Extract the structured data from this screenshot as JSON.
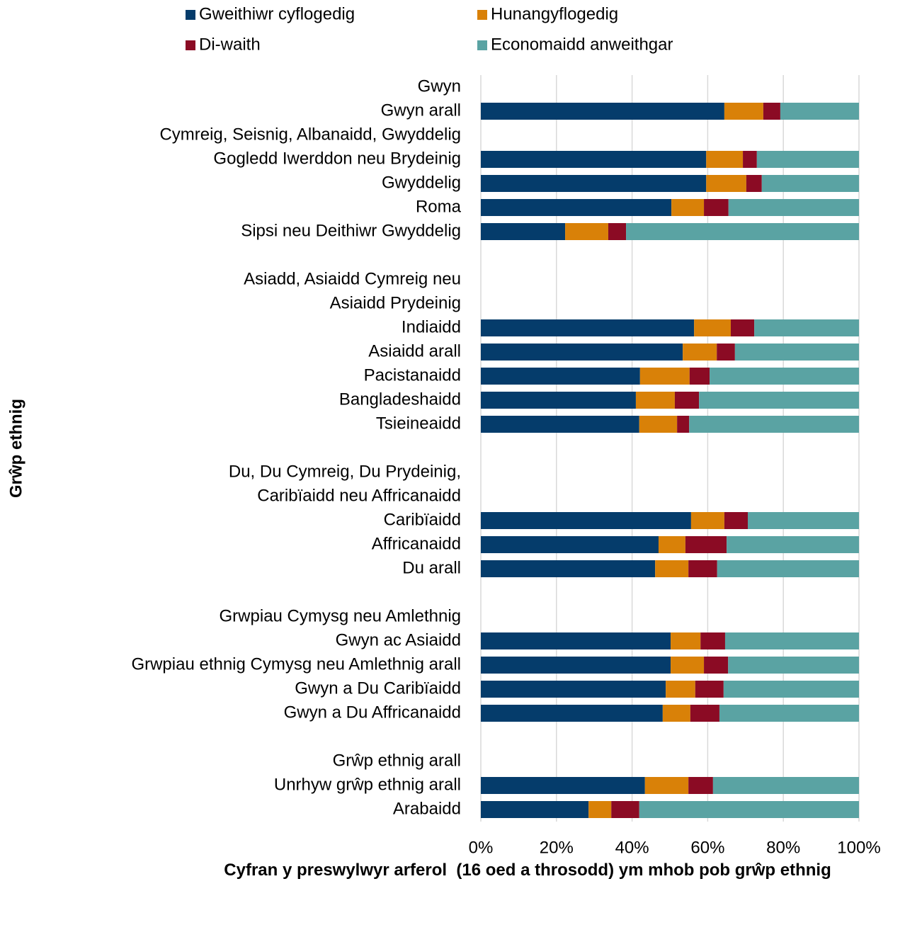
{
  "chart_data": {
    "type": "stacked_barh",
    "x_label": "Cyfran y preswylwyr arferol  (16 oed a throsodd) ym mhob pob grŵp ethnig",
    "y_label": "Grŵp ethnig",
    "categories": [
      "Gwyn",
      "Gwyn arall",
      "Cymreig, Seisnig, Albanaidd, Gwyddelig",
      "Gogledd Iwerddon neu Brydeinig",
      "Gwyddelig",
      "Roma",
      "Sipsi neu Deithiwr Gwyddelig",
      null,
      "Asiadd, Asiaidd Cymreig neu",
      "Asiaidd Prydeinig",
      "Indiaidd",
      "Asiaidd arall",
      "Pacistanaidd",
      "Bangladeshaidd",
      "Tsieineaidd",
      null,
      "Du, Du Cymreig, Du Prydeinig,",
      "Caribïaidd neu Affricanaidd",
      "Caribïaidd",
      "Affricanaidd",
      "Du arall",
      null,
      "Grwpiau Cymysg neu Amlethnig",
      "Gwyn ac Asiaidd",
      "Grwpiau ethnig Cymysg neu Amlethnig arall",
      "Gwyn a Du Caribïaidd",
      "Gwyn a Du Affricanaidd",
      null,
      "Grŵp ethnig arall",
      "Unrhyw grŵp ethnig arall",
      "Arabaidd"
    ],
    "series": [
      {
        "name": "Gweithiwr cyflogedig",
        "color": "#053c6b",
        "values": [
          null,
          64.4,
          null,
          59.6,
          59.6,
          50.4,
          22.3,
          null,
          null,
          null,
          56.4,
          53.4,
          42.1,
          41.0,
          41.9,
          null,
          null,
          null,
          55.6,
          47.0,
          46.1,
          null,
          null,
          50.2,
          50.2,
          48.9,
          48.1,
          null,
          null,
          43.4,
          28.5
        ]
      },
      {
        "name": "Hunangyflogedig",
        "color": "#d98108",
        "values": [
          null,
          10.3,
          null,
          9.7,
          10.6,
          8.6,
          11.4,
          null,
          null,
          null,
          9.7,
          9.0,
          13.1,
          10.3,
          10.0,
          null,
          null,
          null,
          8.8,
          7.1,
          8.8,
          null,
          null,
          7.9,
          8.8,
          7.8,
          7.3,
          null,
          null,
          11.5,
          6.0
        ]
      },
      {
        "name": "Di-waith",
        "color": "#8b0b24",
        "values": [
          null,
          4.5,
          null,
          3.7,
          4.1,
          6.5,
          4.7,
          null,
          null,
          null,
          6.2,
          4.8,
          5.3,
          6.4,
          3.2,
          null,
          null,
          null,
          6.2,
          10.9,
          7.6,
          null,
          null,
          6.5,
          6.4,
          7.5,
          7.7,
          null,
          null,
          6.5,
          7.4
        ]
      },
      {
        "name": "Economaidd anweithgar",
        "color": "#5aa3a3",
        "values": [
          null,
          20.8,
          null,
          27.0,
          25.7,
          34.5,
          61.6,
          null,
          null,
          null,
          27.7,
          32.8,
          39.5,
          42.3,
          44.9,
          null,
          null,
          null,
          29.4,
          35.0,
          37.5,
          null,
          null,
          35.4,
          34.6,
          35.8,
          36.9,
          null,
          null,
          38.6,
          58.1
        ]
      }
    ],
    "xlim": [
      0,
      100
    ],
    "xticks": [
      {
        "value": 0,
        "label": "0%"
      },
      {
        "value": 20,
        "label": "20%"
      },
      {
        "value": 40,
        "label": "40%"
      },
      {
        "value": 60,
        "label": "60%"
      },
      {
        "value": 80,
        "label": "80%"
      },
      {
        "value": 100,
        "label": "100%"
      }
    ],
    "grid": true,
    "legend": "top"
  }
}
